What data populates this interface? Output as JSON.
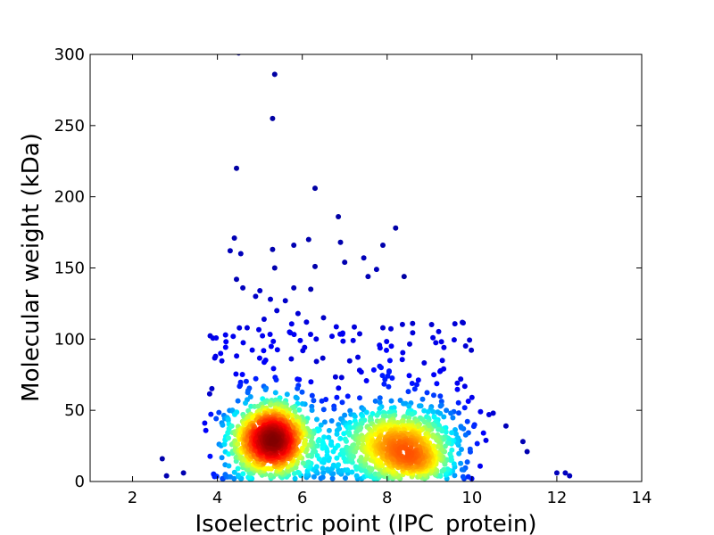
{
  "chart_data": {
    "type": "scatter",
    "title": "",
    "xlabel": "Isoelectric point (IPC_protein)",
    "ylabel": "Molecular weight (kDa)",
    "xlim": [
      1,
      14
    ],
    "ylim": [
      0,
      300
    ],
    "x_ticks": [
      2,
      4,
      6,
      8,
      10,
      12,
      14
    ],
    "y_ticks": [
      0,
      50,
      100,
      150,
      200,
      250,
      300
    ],
    "grid": false,
    "legend": "none",
    "colormap": "jet (point density)",
    "clusters": [
      {
        "center_x": 5.3,
        "center_y": 30,
        "sd_x": 0.45,
        "sd_y": 11,
        "n": 900
      },
      {
        "center_x": 8.2,
        "center_y": 27,
        "sd_x": 0.75,
        "sd_y": 11,
        "n": 700
      },
      {
        "center_x": 8.7,
        "center_y": 14,
        "sd_x": 0.35,
        "sd_y": 4,
        "n": 160
      }
    ],
    "outliers": [
      [
        4.5,
        301
      ],
      [
        5.35,
        286
      ],
      [
        5.3,
        255
      ],
      [
        4.45,
        220
      ],
      [
        6.3,
        206
      ],
      [
        6.85,
        186
      ],
      [
        8.2,
        178
      ],
      [
        4.4,
        171
      ],
      [
        6.15,
        170
      ],
      [
        6.9,
        168
      ],
      [
        7.9,
        166
      ],
      [
        5.8,
        166
      ],
      [
        5.3,
        163
      ],
      [
        4.3,
        162
      ],
      [
        4.55,
        160
      ],
      [
        7.45,
        157
      ],
      [
        7.0,
        154
      ],
      [
        6.3,
        151
      ],
      [
        5.35,
        150
      ],
      [
        7.75,
        149
      ],
      [
        7.55,
        144
      ],
      [
        8.4,
        144
      ],
      [
        4.45,
        142
      ],
      [
        4.6,
        136
      ],
      [
        5.0,
        134
      ],
      [
        5.8,
        136
      ],
      [
        6.2,
        135
      ],
      [
        4.9,
        130
      ],
      [
        5.25,
        128
      ],
      [
        5.6,
        127
      ],
      [
        5.4,
        120
      ],
      [
        5.9,
        118
      ],
      [
        6.5,
        115
      ],
      [
        5.1,
        114
      ],
      [
        6.1,
        112
      ],
      [
        8.6,
        111
      ],
      [
        4.7,
        108
      ],
      [
        5.7,
        105
      ],
      [
        7.9,
        108
      ],
      [
        10.0,
        59
      ],
      [
        10.2,
        49
      ],
      [
        10.4,
        47
      ],
      [
        10.5,
        48
      ],
      [
        10.8,
        39
      ],
      [
        11.2,
        28
      ],
      [
        11.3,
        21
      ],
      [
        12.0,
        6
      ],
      [
        12.2,
        6
      ],
      [
        12.3,
        4
      ],
      [
        2.7,
        16
      ],
      [
        2.8,
        4
      ],
      [
        3.2,
        6
      ],
      [
        3.7,
        41
      ],
      [
        9.3,
        85
      ],
      [
        9.1,
        75
      ],
      [
        9.5,
        48
      ],
      [
        9.8,
        37
      ],
      [
        7.2,
        99
      ],
      [
        6.7,
        102
      ],
      [
        8.1,
        95
      ]
    ]
  }
}
